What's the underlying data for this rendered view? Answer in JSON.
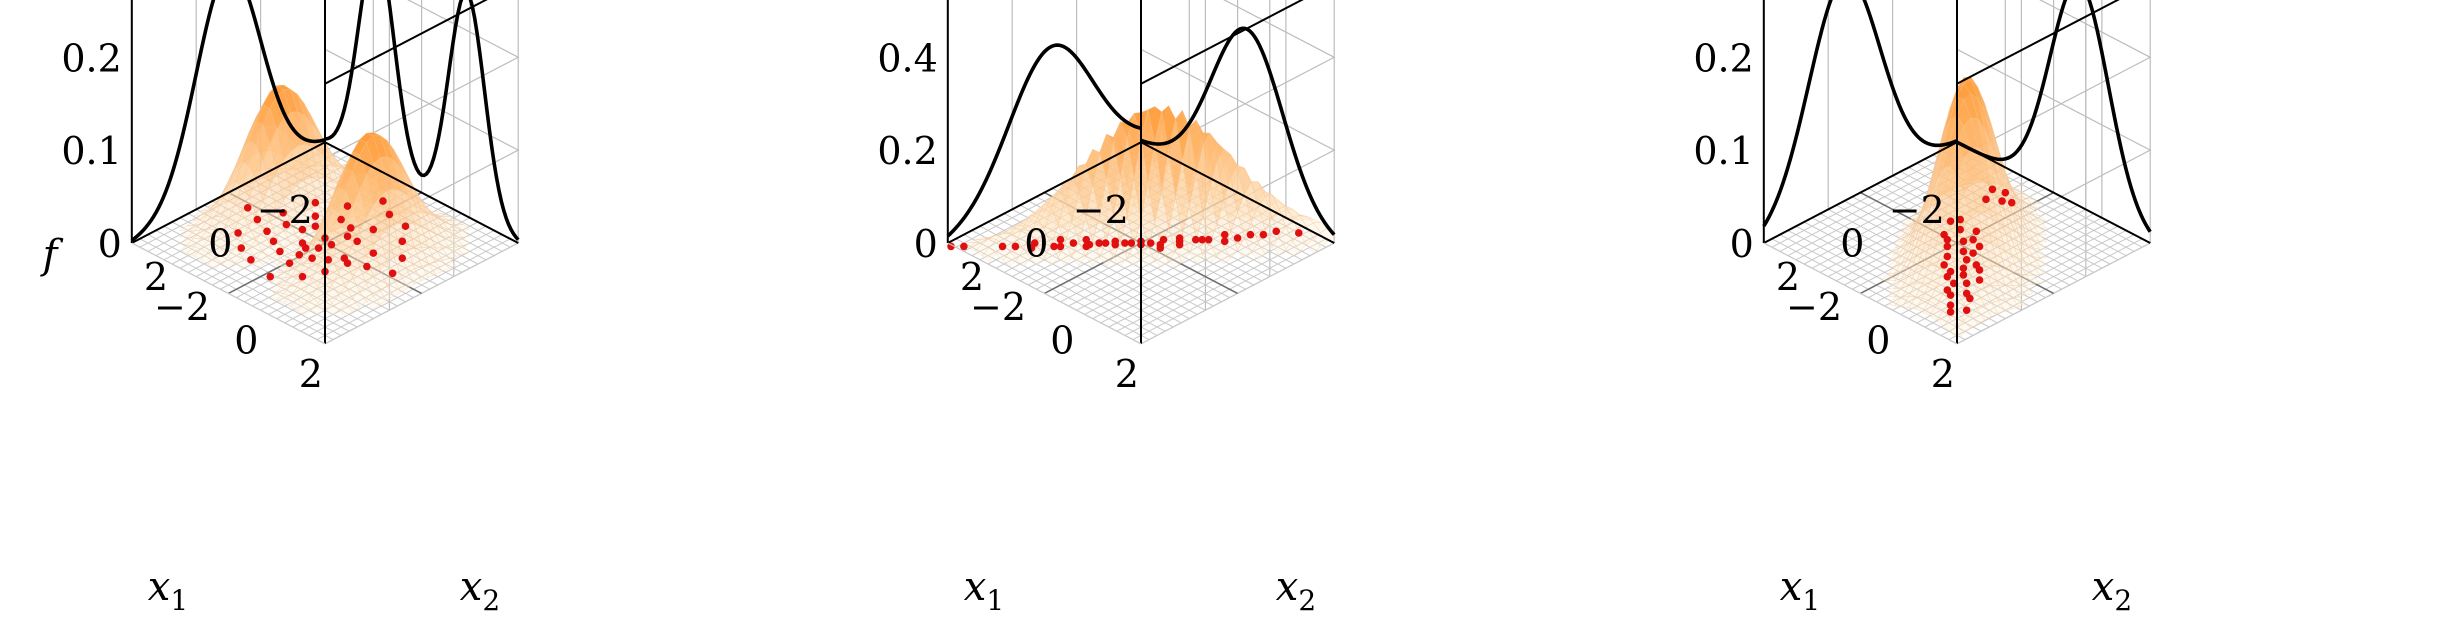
{
  "chart_data": [
    {
      "type": "surface3d",
      "zlabel": "f",
      "xlabel": "x1",
      "ylabel": "x2",
      "x_ticks": [
        "−2",
        "0",
        "2"
      ],
      "y_ticks": [
        "−2",
        "0",
        "2"
      ],
      "z_ticks": [
        "0",
        "0.1",
        "0.2"
      ],
      "xlim": [
        -3,
        3
      ],
      "ylim": [
        -3,
        3
      ],
      "zlim": [
        0,
        0.28
      ],
      "grid": true,
      "mixture": [
        {
          "weight": 0.5,
          "mean": [
            0,
            -1.4
          ],
          "sd": [
            1.0,
            0.55
          ],
          "rho": 0
        },
        {
          "weight": 0.5,
          "mean": [
            0,
            1.4
          ],
          "sd": [
            1.0,
            0.55
          ],
          "rho": 0
        }
      ],
      "marginal_x1_peaks": [
        [
          -1.4,
          0.23
        ],
        [
          1.4,
          0.23
        ]
      ],
      "marginal_x2_peaks": [
        [
          -1.4,
          0.23
        ],
        [
          1.4,
          0.23
        ]
      ],
      "samples": [
        [
          0.1,
          0.3
        ],
        [
          -0.4,
          0.6
        ],
        [
          0.5,
          -0.2
        ],
        [
          0.8,
          0.4
        ],
        [
          -0.2,
          -0.5
        ],
        [
          0.3,
          0.9
        ],
        [
          -0.7,
          0.1
        ],
        [
          1.1,
          -0.3
        ],
        [
          0.0,
          0.0
        ],
        [
          -0.5,
          -0.8
        ],
        [
          0.6,
          0.7
        ],
        [
          1.3,
          0.2
        ],
        [
          -1.0,
          0.5
        ],
        [
          0.2,
          -1.0
        ],
        [
          0.9,
          -0.7
        ],
        [
          -0.3,
          1.2
        ],
        [
          0.4,
          0.2
        ],
        [
          -0.8,
          -0.3
        ],
        [
          1.5,
          0.8
        ],
        [
          0.7,
          -1.1
        ],
        [
          -1.3,
          -0.6
        ],
        [
          0.2,
          1.5
        ],
        [
          -0.1,
          -1.4
        ],
        [
          1.0,
          1.0
        ],
        [
          -1.6,
          0.9
        ],
        [
          0.5,
          -1.6
        ],
        [
          1.8,
          -0.5
        ],
        [
          -0.6,
          1.8
        ],
        [
          0.0,
          2.1
        ],
        [
          2.0,
          0.3
        ],
        [
          -2.0,
          -0.2
        ],
        [
          0.3,
          -2.1
        ],
        [
          1.2,
          -1.5
        ],
        [
          -1.1,
          1.3
        ],
        [
          0.6,
          0.0
        ],
        [
          -0.4,
          0.3
        ],
        [
          0.9,
          0.1
        ],
        [
          0.1,
          -0.6
        ],
        [
          -0.9,
          -1.2
        ],
        [
          1.6,
          -1.0
        ],
        [
          -1.7,
          0.3
        ],
        [
          0.4,
          1.1
        ]
      ]
    },
    {
      "type": "surface3d",
      "zlabel": "",
      "xlabel": "x1",
      "ylabel": "x2",
      "x_ticks": [
        "−2",
        "0",
        "2"
      ],
      "y_ticks": [
        "−2",
        "0",
        "2"
      ],
      "z_ticks": [
        "0",
        "0.2",
        "0.4"
      ],
      "xlim": [
        -3,
        3
      ],
      "ylim": [
        -3,
        3
      ],
      "zlim": [
        0,
        0.56
      ],
      "grid": true,
      "mixture": [
        {
          "weight": 1.0,
          "mean": [
            -0.2,
            0.3
          ],
          "sd": [
            1.3,
            1.1
          ],
          "rho": -0.93
        }
      ],
      "marginal_x1_peaks": [
        [
          -3,
          0.03
        ],
        [
          0,
          0.4
        ]
      ],
      "marginal_x2_peaks": [
        [
          1.1,
          0.5
        ]
      ],
      "samples": [
        [
          -0.5,
          0.7
        ],
        [
          0.0,
          0.3
        ],
        [
          0.6,
          -0.2
        ],
        [
          1.0,
          -0.6
        ],
        [
          -1.0,
          1.1
        ],
        [
          1.5,
          -1.0
        ],
        [
          -1.5,
          1.5
        ],
        [
          0.3,
          0.0
        ],
        [
          -0.3,
          0.4
        ],
        [
          0.8,
          -0.5
        ],
        [
          -0.8,
          0.9
        ],
        [
          1.2,
          -0.9
        ],
        [
          2.0,
          -1.4
        ],
        [
          -2.0,
          1.8
        ],
        [
          0.2,
          0.2
        ],
        [
          -0.1,
          0.5
        ],
        [
          0.5,
          -0.3
        ],
        [
          1.8,
          -1.5
        ],
        [
          -1.2,
          1.4
        ],
        [
          0.9,
          -0.8
        ],
        [
          -0.6,
          0.6
        ],
        [
          0.4,
          -0.1
        ],
        [
          1.6,
          -1.1
        ],
        [
          -1.8,
          1.6
        ],
        [
          2.4,
          -1.9
        ],
        [
          -2.6,
          2.3
        ],
        [
          0.1,
          0.1
        ],
        [
          -0.4,
          0.8
        ],
        [
          0.7,
          -0.4
        ],
        [
          1.3,
          -1.2
        ],
        [
          -0.9,
          1.0
        ],
        [
          2.2,
          -1.7
        ],
        [
          -2.3,
          1.9
        ],
        [
          0.0,
          0.6
        ],
        [
          1.1,
          -0.6
        ],
        [
          -1.4,
          1.2
        ],
        [
          3.0,
          -2.5
        ],
        [
          3.2,
          -2.7
        ]
      ]
    },
    {
      "type": "surface3d",
      "zlabel": "",
      "xlabel": "x1",
      "ylabel": "x2",
      "x_ticks": [
        "−2",
        "0",
        "2"
      ],
      "y_ticks": [
        "−2",
        "0",
        "2"
      ],
      "z_ticks": [
        "0",
        "0.1",
        "0.2"
      ],
      "xlim": [
        -3,
        3
      ],
      "ylim": [
        -3,
        3
      ],
      "zlim": [
        0,
        0.28
      ],
      "grid": true,
      "mixture": [
        {
          "weight": 1.0,
          "mean": [
            0.5,
            0.8
          ],
          "sd": [
            1.1,
            0.9
          ],
          "rho": 0.6
        }
      ],
      "marginal_x1_peaks": [
        [
          -1.6,
          0.17
        ],
        [
          2.4,
          0.14
        ]
      ],
      "marginal_x2_peaks": [
        [
          0.8,
          0.23
        ]
      ],
      "samples": [
        [
          0.0,
          0.2
        ],
        [
          0.5,
          0.8
        ],
        [
          1.0,
          1.2
        ],
        [
          1.5,
          1.8
        ],
        [
          2.0,
          2.3
        ],
        [
          0.3,
          0.5
        ],
        [
          0.8,
          1.0
        ],
        [
          1.2,
          1.5
        ],
        [
          -0.3,
          -0.2
        ],
        [
          0.2,
          0.7
        ],
        [
          0.7,
          0.4
        ],
        [
          1.3,
          1.0
        ],
        [
          1.8,
          1.6
        ],
        [
          -0.6,
          -0.5
        ],
        [
          0.6,
          1.3
        ],
        [
          1.1,
          0.9
        ],
        [
          -0.2,
          0.3
        ],
        [
          0.4,
          0.1
        ],
        [
          1.6,
          2.0
        ],
        [
          2.3,
          2.1
        ],
        [
          0.9,
          1.6
        ],
        [
          -0.5,
          0.1
        ],
        [
          0.1,
          -0.3
        ],
        [
          1.4,
          1.3
        ],
        [
          2.1,
          1.9
        ],
        [
          -0.1,
          0.6
        ],
        [
          0.5,
          1.1
        ],
        [
          1.0,
          0.6
        ],
        [
          1.7,
          1.4
        ],
        [
          0.2,
          -0.1
        ],
        [
          -0.4,
          -0.6
        ],
        [
          -1.8,
          -0.4
        ],
        [
          -2.1,
          -0.6
        ],
        [
          -1.6,
          -0.7
        ],
        [
          -2.0,
          -0.9
        ],
        [
          -1.9,
          -0.2
        ]
      ]
    }
  ]
}
